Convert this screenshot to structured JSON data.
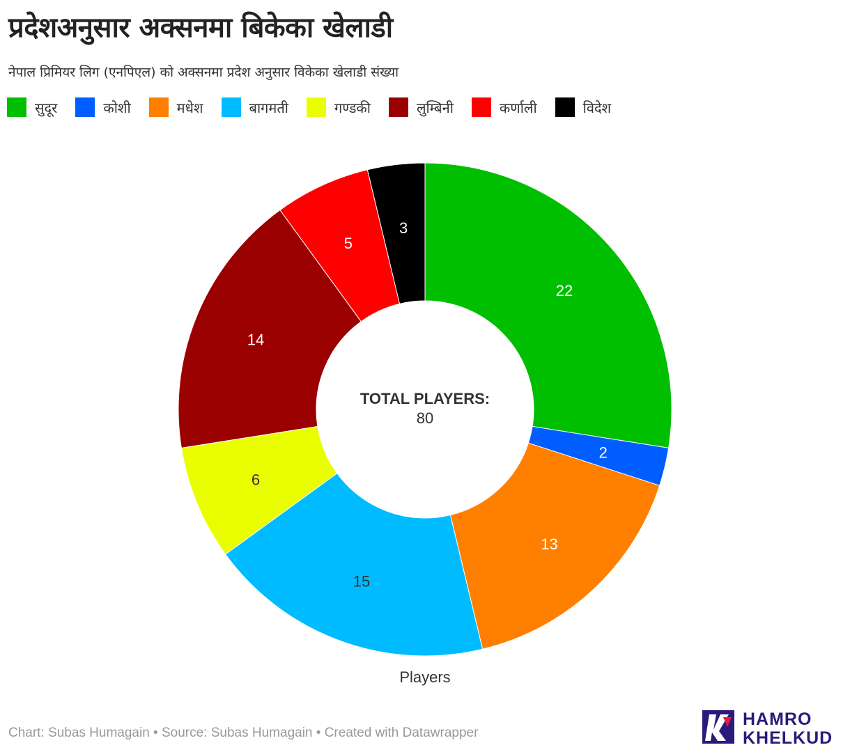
{
  "title": "प्रदेशअनुसार अक्सनमा बिकेका खेलाडी",
  "subtitle": "नेपाल प्रिमियर लिग (एनपिएल) को अक्सनमा प्रदेश अनुसार विकेका खेलाडी संख्या",
  "footer": "Chart: Subas Humagain • Source: Subas Humagain • Created with Datawrapper",
  "logo": {
    "line1": "HAMRO",
    "line2": "KHELKUD"
  },
  "chart_data": {
    "type": "pie",
    "variant": "donut",
    "center_label": "TOTAL PLAYERS:",
    "center_value": "80",
    "series_label": "Players",
    "legend_placement": "top-left",
    "slices": [
      {
        "name": "सुदूर",
        "value": 22,
        "color": "#00bf00",
        "label_color": "#ffffff"
      },
      {
        "name": "कोशी",
        "value": 2,
        "color": "#005dff",
        "label_color": "#ffffff"
      },
      {
        "name": "मधेश",
        "value": 13,
        "color": "#ff7f00",
        "label_color": "#ffffff"
      },
      {
        "name": "बागमती",
        "value": 15,
        "color": "#00bbff",
        "label_color": "#333333"
      },
      {
        "name": "गण्डकी",
        "value": 6,
        "color": "#e9ff00",
        "label_color": "#333333"
      },
      {
        "name": "लुम्बिनी",
        "value": 14,
        "color": "#9b0000",
        "label_color": "#ffffff"
      },
      {
        "name": "कर्णाली",
        "value": 5,
        "color": "#ff0000",
        "label_color": "#ffffff"
      },
      {
        "name": "विदेश",
        "value": 3,
        "color": "#000000",
        "label_color": "#ffffff"
      }
    ]
  }
}
